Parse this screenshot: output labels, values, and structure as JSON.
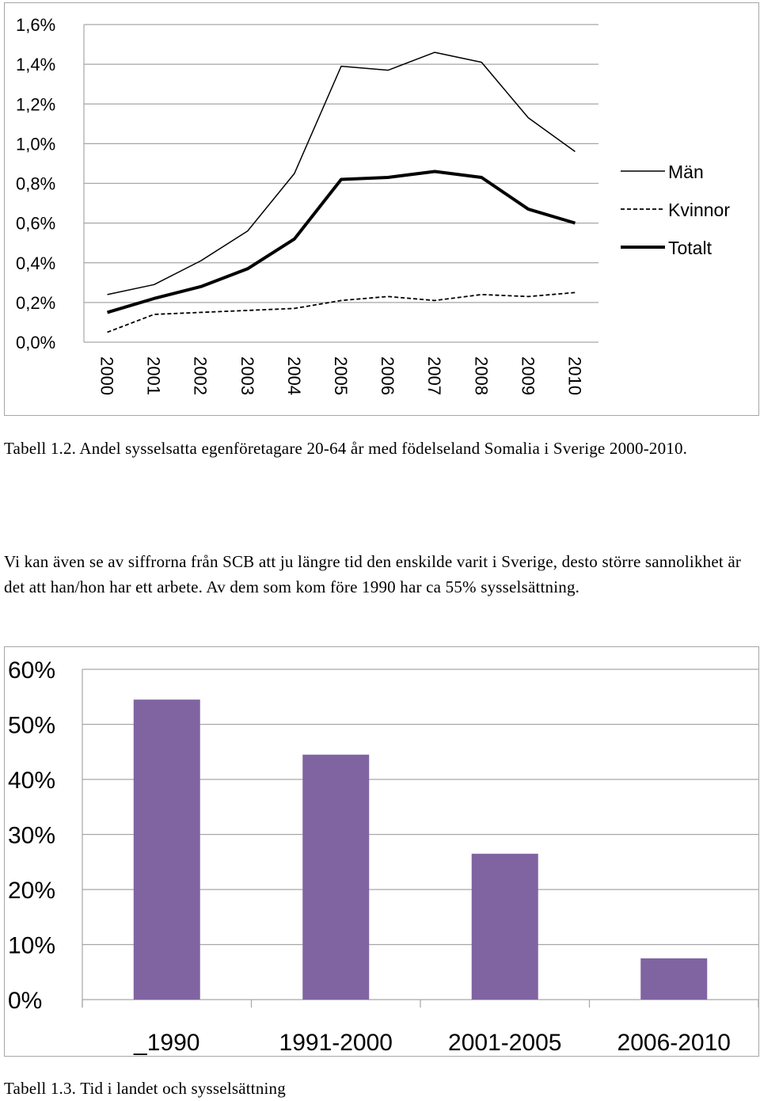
{
  "chart_data": [
    {
      "type": "line",
      "title": "",
      "xlabel": "",
      "ylabel": "",
      "x": [
        "2000",
        "2001",
        "2002",
        "2003",
        "2004",
        "2005",
        "2006",
        "2007",
        "2008",
        "2009",
        "2010"
      ],
      "yticks": [
        "0,0%",
        "0,2%",
        "0,4%",
        "0,6%",
        "0,8%",
        "1,0%",
        "1,2%",
        "1,4%",
        "1,6%"
      ],
      "ylim": [
        0,
        1.6
      ],
      "grid": true,
      "legend_position": "right",
      "series": [
        {
          "name": "Män",
          "style": "solid-thin",
          "color": "#000000",
          "values": [
            0.24,
            0.29,
            0.41,
            0.56,
            0.85,
            1.39,
            1.37,
            1.46,
            1.41,
            1.13,
            0.96
          ]
        },
        {
          "name": "Kvinnor",
          "style": "dashed",
          "color": "#000000",
          "values": [
            0.05,
            0.14,
            0.15,
            0.16,
            0.17,
            0.21,
            0.23,
            0.21,
            0.24,
            0.23,
            0.25
          ]
        },
        {
          "name": "Totalt",
          "style": "solid-thick",
          "color": "#000000",
          "values": [
            0.15,
            0.22,
            0.28,
            0.37,
            0.52,
            0.82,
            0.83,
            0.86,
            0.83,
            0.67,
            0.6
          ]
        }
      ]
    },
    {
      "type": "bar",
      "title": "",
      "xlabel": "",
      "ylabel": "",
      "categories": [
        "_1990",
        "1991-2000",
        "2001-2005",
        "2006-2010"
      ],
      "values": [
        54.5,
        44.5,
        26.5,
        7.5
      ],
      "yticks": [
        "0%",
        "10%",
        "20%",
        "30%",
        "40%",
        "50%",
        "60%"
      ],
      "ylim": [
        0,
        60
      ],
      "grid": true,
      "bar_color": "#8064a2"
    }
  ],
  "captions": {
    "table_1_2": "Tabell 1.2. Andel sysselsatta egenföretagare 20-64 år med födelseland Somalia i Sverige 2000-2010.",
    "paragraph": "Vi kan även se av siffrorna från SCB att ju längre tid den enskilde varit i Sverige, desto större sannolikhet är det att han/hon har ett arbete. Av dem som kom före 1990 har ca 55% sysselsättning.",
    "table_1_3": "Tabell 1.3. Tid i landet och sysselsättning"
  }
}
